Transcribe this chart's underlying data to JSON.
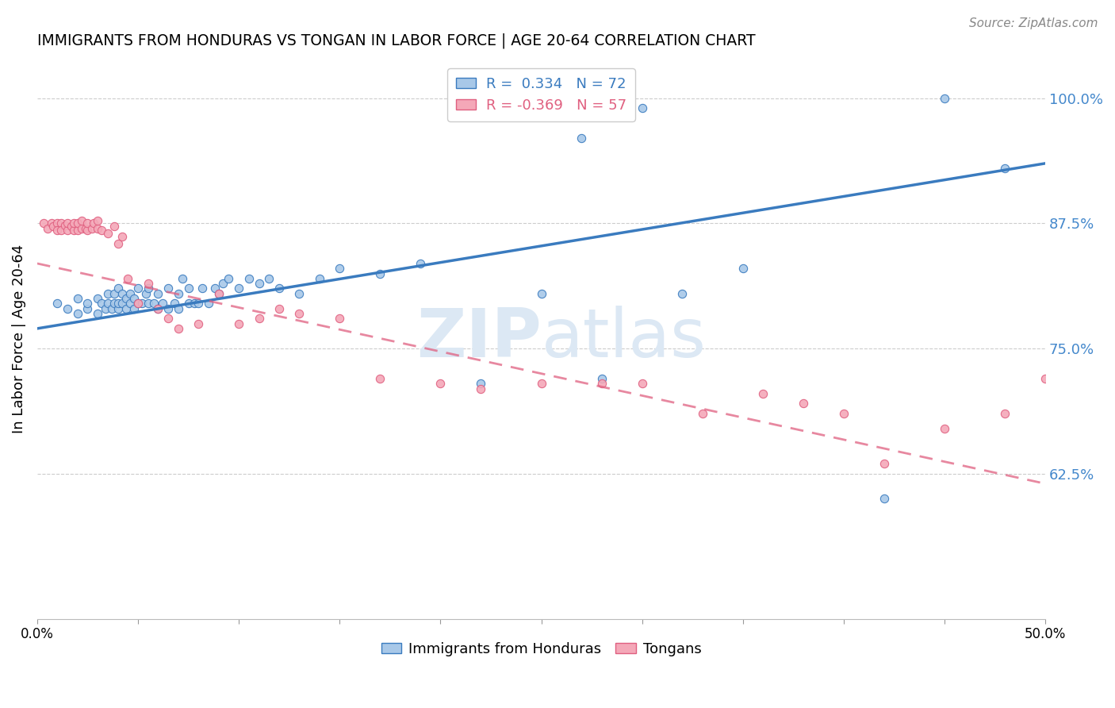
{
  "title": "IMMIGRANTS FROM HONDURAS VS TONGAN IN LABOR FORCE | AGE 20-64 CORRELATION CHART",
  "source": "Source: ZipAtlas.com",
  "ylabel": "In Labor Force | Age 20-64",
  "xlim": [
    0.0,
    0.5
  ],
  "ylim": [
    0.48,
    1.04
  ],
  "yticks": [
    0.625,
    0.75,
    0.875,
    1.0
  ],
  "ytick_labels": [
    "62.5%",
    "75.0%",
    "87.5%",
    "100.0%"
  ],
  "xticks": [
    0.0,
    0.05,
    0.1,
    0.15,
    0.2,
    0.25,
    0.3,
    0.35,
    0.4,
    0.45,
    0.5
  ],
  "xtick_labels": [
    "0.0%",
    "",
    "",
    "",
    "",
    "",
    "",
    "",
    "",
    "",
    "50.0%"
  ],
  "legend_blue_r": "0.334",
  "legend_blue_n": "72",
  "legend_pink_r": "-0.369",
  "legend_pink_n": "57",
  "blue_color": "#a8c8e8",
  "pink_color": "#f4a8b8",
  "trendline_blue": "#3a7bbf",
  "trendline_pink": "#e06080",
  "watermark_color": "#dce8f4",
  "blue_scatter_x": [
    0.01,
    0.015,
    0.02,
    0.02,
    0.025,
    0.025,
    0.03,
    0.03,
    0.032,
    0.034,
    0.035,
    0.035,
    0.037,
    0.038,
    0.038,
    0.04,
    0.04,
    0.04,
    0.042,
    0.042,
    0.044,
    0.044,
    0.046,
    0.046,
    0.048,
    0.048,
    0.05,
    0.05,
    0.052,
    0.054,
    0.055,
    0.055,
    0.058,
    0.06,
    0.06,
    0.062,
    0.065,
    0.065,
    0.068,
    0.07,
    0.07,
    0.072,
    0.075,
    0.075,
    0.078,
    0.08,
    0.082,
    0.085,
    0.088,
    0.09,
    0.092,
    0.095,
    0.1,
    0.105,
    0.11,
    0.115,
    0.12,
    0.13,
    0.14,
    0.15,
    0.17,
    0.19,
    0.22,
    0.25,
    0.28,
    0.32,
    0.35,
    0.42,
    0.45,
    0.48,
    0.27,
    0.3
  ],
  "blue_scatter_y": [
    0.795,
    0.79,
    0.8,
    0.785,
    0.79,
    0.795,
    0.8,
    0.785,
    0.795,
    0.79,
    0.795,
    0.805,
    0.79,
    0.795,
    0.805,
    0.79,
    0.795,
    0.81,
    0.795,
    0.805,
    0.79,
    0.8,
    0.795,
    0.805,
    0.79,
    0.8,
    0.795,
    0.81,
    0.795,
    0.805,
    0.795,
    0.81,
    0.795,
    0.79,
    0.805,
    0.795,
    0.79,
    0.81,
    0.795,
    0.79,
    0.805,
    0.82,
    0.795,
    0.81,
    0.795,
    0.795,
    0.81,
    0.795,
    0.81,
    0.805,
    0.815,
    0.82,
    0.81,
    0.82,
    0.815,
    0.82,
    0.81,
    0.805,
    0.82,
    0.83,
    0.825,
    0.835,
    0.715,
    0.805,
    0.72,
    0.805,
    0.83,
    0.6,
    1.0,
    0.93,
    0.96,
    0.99
  ],
  "pink_scatter_x": [
    0.003,
    0.005,
    0.007,
    0.008,
    0.01,
    0.01,
    0.012,
    0.012,
    0.014,
    0.015,
    0.015,
    0.017,
    0.018,
    0.018,
    0.02,
    0.02,
    0.022,
    0.022,
    0.024,
    0.025,
    0.025,
    0.027,
    0.028,
    0.03,
    0.03,
    0.032,
    0.035,
    0.038,
    0.04,
    0.042,
    0.045,
    0.05,
    0.055,
    0.06,
    0.065,
    0.07,
    0.08,
    0.09,
    0.1,
    0.11,
    0.12,
    0.13,
    0.15,
    0.17,
    0.2,
    0.22,
    0.25,
    0.28,
    0.3,
    0.33,
    0.36,
    0.38,
    0.4,
    0.42,
    0.45,
    0.48,
    0.5
  ],
  "pink_scatter_y": [
    0.875,
    0.87,
    0.875,
    0.872,
    0.875,
    0.868,
    0.875,
    0.868,
    0.873,
    0.868,
    0.875,
    0.872,
    0.868,
    0.875,
    0.868,
    0.875,
    0.87,
    0.878,
    0.87,
    0.868,
    0.875,
    0.87,
    0.875,
    0.87,
    0.878,
    0.868,
    0.865,
    0.872,
    0.855,
    0.862,
    0.82,
    0.795,
    0.815,
    0.79,
    0.78,
    0.77,
    0.775,
    0.805,
    0.775,
    0.78,
    0.79,
    0.785,
    0.78,
    0.72,
    0.715,
    0.71,
    0.715,
    0.715,
    0.715,
    0.685,
    0.705,
    0.695,
    0.685,
    0.635,
    0.67,
    0.685,
    0.72
  ],
  "blue_trendline_y0": 0.77,
  "blue_trendline_y1": 0.935,
  "pink_trendline_y0": 0.835,
  "pink_trendline_y1": 0.615
}
